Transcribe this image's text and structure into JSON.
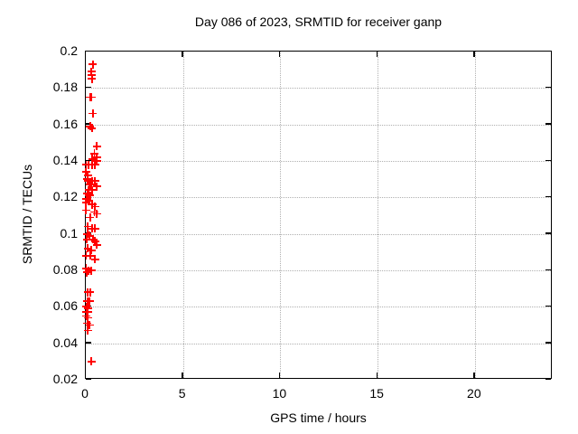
{
  "chart_data": {
    "type": "scatter",
    "title": "Day 086 of 2023, SRMTID for receiver ganp",
    "xlabel": "GPS time / hours",
    "ylabel": "SRMTID / TECUs",
    "xlim": [
      0,
      24
    ],
    "ylim": [
      0.02,
      0.2
    ],
    "xticks": [
      0,
      5,
      10,
      15,
      20
    ],
    "xtick_labels": [
      "0",
      "5",
      "10",
      "15",
      "20"
    ],
    "yticks": [
      0.02,
      0.04,
      0.06,
      0.08,
      0.1,
      0.12,
      0.14,
      0.16,
      0.18,
      0.2
    ],
    "ytick_labels": [
      "0.02",
      "0.04",
      "0.06",
      "0.08",
      "0.1",
      "0.12",
      "0.14",
      "0.16",
      "0.18",
      "0.2"
    ],
    "grid": true,
    "grid_style": "dotted",
    "grid_color": "#b0b0b0",
    "border_color": "#000000",
    "background_color": "#ffffff",
    "legend": "none",
    "marker": "plus",
    "marker_color": "#ff0000",
    "series": [
      {
        "name": "SRMTID",
        "points": [
          [
            0.37,
            0.193
          ],
          [
            0.28,
            0.189
          ],
          [
            0.3,
            0.187
          ],
          [
            0.32,
            0.185
          ],
          [
            0.23,
            0.175
          ],
          [
            0.3,
            0.175
          ],
          [
            0.37,
            0.166
          ],
          [
            0.23,
            0.159
          ],
          [
            0.32,
            0.158
          ],
          [
            0.56,
            0.148
          ],
          [
            0.44,
            0.144
          ],
          [
            0.56,
            0.142
          ],
          [
            0.33,
            0.141
          ],
          [
            0.56,
            0.14
          ],
          [
            0.02,
            0.138
          ],
          [
            0.15,
            0.138
          ],
          [
            0.33,
            0.138
          ],
          [
            0.48,
            0.138
          ],
          [
            0.0,
            0.134
          ],
          [
            0.1,
            0.132
          ],
          [
            0.08,
            0.13
          ],
          [
            0.1,
            0.129
          ],
          [
            0.33,
            0.129
          ],
          [
            0.48,
            0.129
          ],
          [
            0.2,
            0.127
          ],
          [
            0.28,
            0.127
          ],
          [
            0.56,
            0.126
          ],
          [
            0.15,
            0.124
          ],
          [
            0.33,
            0.124
          ],
          [
            0.08,
            0.122
          ],
          [
            0.15,
            0.121
          ],
          [
            0.23,
            0.121
          ],
          [
            0.02,
            0.119
          ],
          [
            0.15,
            0.118
          ],
          [
            0.0,
            0.117
          ],
          [
            0.33,
            0.116
          ],
          [
            0.48,
            0.115
          ],
          [
            0.0,
            0.113
          ],
          [
            0.44,
            0.112
          ],
          [
            0.56,
            0.111
          ],
          [
            0.23,
            0.109
          ],
          [
            0.1,
            0.104
          ],
          [
            0.33,
            0.103
          ],
          [
            0.48,
            0.103
          ],
          [
            0.08,
            0.1
          ],
          [
            0.2,
            0.099
          ],
          [
            0.05,
            0.097
          ],
          [
            0.39,
            0.097
          ],
          [
            0.48,
            0.096
          ],
          [
            0.56,
            0.094
          ],
          [
            0.1,
            0.092
          ],
          [
            0.28,
            0.091
          ],
          [
            0.02,
            0.088
          ],
          [
            0.23,
            0.088
          ],
          [
            0.48,
            0.086
          ],
          [
            0.02,
            0.081
          ],
          [
            0.15,
            0.08
          ],
          [
            0.28,
            0.08
          ],
          [
            0.05,
            0.079
          ],
          [
            0.1,
            0.068
          ],
          [
            0.23,
            0.068
          ],
          [
            0.08,
            0.063
          ],
          [
            0.2,
            0.063
          ],
          [
            0.02,
            0.06
          ],
          [
            0.1,
            0.059
          ],
          [
            0.02,
            0.057
          ],
          [
            0.1,
            0.057
          ],
          [
            0.02,
            0.055
          ],
          [
            0.1,
            0.054
          ],
          [
            0.08,
            0.051
          ],
          [
            0.2,
            0.05
          ],
          [
            0.1,
            0.047
          ],
          [
            0.28,
            0.03
          ]
        ]
      }
    ]
  }
}
